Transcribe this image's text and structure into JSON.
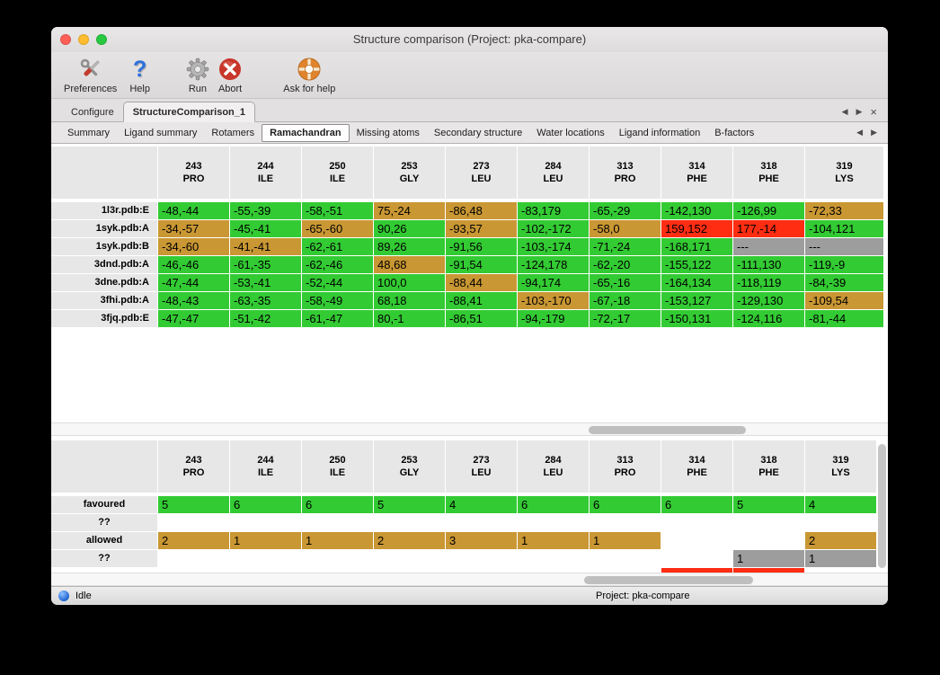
{
  "window": {
    "title": "Structure comparison (Project: pka-compare)",
    "traffic_lights": [
      {
        "name": "close",
        "color": "#ff5f57"
      },
      {
        "name": "minimize",
        "color": "#febc2e"
      },
      {
        "name": "zoom",
        "color": "#28c840"
      }
    ]
  },
  "toolbar": {
    "items": [
      {
        "label": "Preferences",
        "icon": "preferences-tools-icon"
      },
      {
        "label": "Help",
        "icon": "help-question-icon"
      },
      {
        "label": "Run",
        "icon": "run-gear-icon"
      },
      {
        "label": "Abort",
        "icon": "abort-icon"
      },
      {
        "label": "Ask for help",
        "icon": "lifebuoy-icon"
      }
    ]
  },
  "tabstrip": {
    "tabs": [
      {
        "label": "Configure",
        "selected": false
      },
      {
        "label": "StructureComparison_1",
        "selected": true
      }
    ],
    "controls": {
      "prev": "◀",
      "next": "▶",
      "close": "×"
    }
  },
  "subtabstrip": {
    "selected": "Ramachandran",
    "tabs": [
      "Summary",
      "Ligand summary",
      "Rotamers",
      "Ramachandran",
      "Missing atoms",
      "Secondary structure",
      "Water locations",
      "Ligand information",
      "B-factors"
    ],
    "controls": {
      "prev": "◀",
      "next": "▶"
    }
  },
  "status_colors": {
    "favoured": "#33cb33",
    "allowed": "#c99733",
    "outlier": "#ff2d12",
    "missing": "#9d9d9d",
    "none": ""
  },
  "columns": [
    {
      "residue_number": "243",
      "residue_name": "PRO"
    },
    {
      "residue_number": "244",
      "residue_name": "ILE"
    },
    {
      "residue_number": "250",
      "residue_name": "ILE"
    },
    {
      "residue_number": "253",
      "residue_name": "GLY"
    },
    {
      "residue_number": "273",
      "residue_name": "LEU"
    },
    {
      "residue_number": "284",
      "residue_name": "LEU"
    },
    {
      "residue_number": "313",
      "residue_name": "PRO"
    },
    {
      "residue_number": "314",
      "residue_name": "PHE"
    },
    {
      "residue_number": "318",
      "residue_name": "PHE"
    },
    {
      "residue_number": "319",
      "residue_name": "LYS"
    }
  ],
  "structure_table": {
    "rows": [
      {
        "label": "1l3r.pdb:E",
        "cells": [
          {
            "text": "-48,-44",
            "status": "favoured"
          },
          {
            "text": "-55,-39",
            "status": "favoured"
          },
          {
            "text": "-58,-51",
            "status": "favoured"
          },
          {
            "text": "75,-24",
            "status": "allowed"
          },
          {
            "text": "-86,48",
            "status": "allowed"
          },
          {
            "text": "-83,179",
            "status": "favoured"
          },
          {
            "text": "-65,-29",
            "status": "favoured"
          },
          {
            "text": "-142,130",
            "status": "favoured"
          },
          {
            "text": "-126,99",
            "status": "favoured"
          },
          {
            "text": "-72,33",
            "status": "allowed"
          }
        ]
      },
      {
        "label": "1syk.pdb:A",
        "cells": [
          {
            "text": "-34,-57",
            "status": "allowed"
          },
          {
            "text": "-45,-41",
            "status": "favoured"
          },
          {
            "text": "-65,-60",
            "status": "allowed"
          },
          {
            "text": "90,26",
            "status": "favoured"
          },
          {
            "text": "-93,57",
            "status": "allowed"
          },
          {
            "text": "-102,-172",
            "status": "favoured"
          },
          {
            "text": "-58,0",
            "status": "allowed"
          },
          {
            "text": "159,152",
            "status": "outlier"
          },
          {
            "text": "177,-14",
            "status": "outlier"
          },
          {
            "text": "-104,121",
            "status": "favoured"
          }
        ]
      },
      {
        "label": "1syk.pdb:B",
        "cells": [
          {
            "text": "-34,-60",
            "status": "allowed"
          },
          {
            "text": "-41,-41",
            "status": "allowed"
          },
          {
            "text": "-62,-61",
            "status": "favoured"
          },
          {
            "text": "89,26",
            "status": "favoured"
          },
          {
            "text": "-91,56",
            "status": "favoured"
          },
          {
            "text": "-103,-174",
            "status": "favoured"
          },
          {
            "text": "-71,-24",
            "status": "favoured"
          },
          {
            "text": "-168,171",
            "status": "favoured"
          },
          {
            "text": "---",
            "status": "missing"
          },
          {
            "text": "---",
            "status": "missing"
          }
        ]
      },
      {
        "label": "3dnd.pdb:A",
        "cells": [
          {
            "text": "-46,-46",
            "status": "favoured"
          },
          {
            "text": "-61,-35",
            "status": "favoured"
          },
          {
            "text": "-62,-46",
            "status": "favoured"
          },
          {
            "text": "48,68",
            "status": "allowed"
          },
          {
            "text": "-91,54",
            "status": "favoured"
          },
          {
            "text": "-124,178",
            "status": "favoured"
          },
          {
            "text": "-62,-20",
            "status": "favoured"
          },
          {
            "text": "-155,122",
            "status": "favoured"
          },
          {
            "text": "-111,130",
            "status": "favoured"
          },
          {
            "text": "-119,-9",
            "status": "favoured"
          }
        ]
      },
      {
        "label": "3dne.pdb:A",
        "cells": [
          {
            "text": "-47,-44",
            "status": "favoured"
          },
          {
            "text": "-53,-41",
            "status": "favoured"
          },
          {
            "text": "-52,-44",
            "status": "favoured"
          },
          {
            "text": "100,0",
            "status": "favoured"
          },
          {
            "text": "-88,44",
            "status": "allowed"
          },
          {
            "text": "-94,174",
            "status": "favoured"
          },
          {
            "text": "-65,-16",
            "status": "favoured"
          },
          {
            "text": "-164,134",
            "status": "favoured"
          },
          {
            "text": "-118,119",
            "status": "favoured"
          },
          {
            "text": "-84,-39",
            "status": "favoured"
          }
        ]
      },
      {
        "label": "3fhi.pdb:A",
        "cells": [
          {
            "text": "-48,-43",
            "status": "favoured"
          },
          {
            "text": "-63,-35",
            "status": "favoured"
          },
          {
            "text": "-58,-49",
            "status": "favoured"
          },
          {
            "text": "68,18",
            "status": "favoured"
          },
          {
            "text": "-88,41",
            "status": "favoured"
          },
          {
            "text": "-103,-170",
            "status": "allowed"
          },
          {
            "text": "-67,-18",
            "status": "favoured"
          },
          {
            "text": "-153,127",
            "status": "favoured"
          },
          {
            "text": "-129,130",
            "status": "favoured"
          },
          {
            "text": "-109,54",
            "status": "allowed"
          }
        ]
      },
      {
        "label": "3fjq.pdb:E",
        "cells": [
          {
            "text": "-47,-47",
            "status": "favoured"
          },
          {
            "text": "-51,-42",
            "status": "favoured"
          },
          {
            "text": "-61,-47",
            "status": "favoured"
          },
          {
            "text": "80,-1",
            "status": "favoured"
          },
          {
            "text": "-86,51",
            "status": "favoured"
          },
          {
            "text": "-94,-179",
            "status": "favoured"
          },
          {
            "text": "-72,-17",
            "status": "favoured"
          },
          {
            "text": "-150,131",
            "status": "favoured"
          },
          {
            "text": "-124,116",
            "status": "favoured"
          },
          {
            "text": "-81,-44",
            "status": "favoured"
          }
        ]
      }
    ]
  },
  "summary_table": {
    "rows": [
      {
        "label": "favoured",
        "cells": [
          {
            "text": "5",
            "status": "favoured"
          },
          {
            "text": "6",
            "status": "favoured"
          },
          {
            "text": "6",
            "status": "favoured"
          },
          {
            "text": "5",
            "status": "favoured"
          },
          {
            "text": "4",
            "status": "favoured"
          },
          {
            "text": "6",
            "status": "favoured"
          },
          {
            "text": "6",
            "status": "favoured"
          },
          {
            "text": "6",
            "status": "favoured"
          },
          {
            "text": "5",
            "status": "favoured"
          },
          {
            "text": "4",
            "status": "favoured"
          }
        ]
      },
      {
        "label": "??",
        "cells": [
          {
            "text": "",
            "status": "none"
          },
          {
            "text": "",
            "status": "none"
          },
          {
            "text": "",
            "status": "none"
          },
          {
            "text": "",
            "status": "none"
          },
          {
            "text": "",
            "status": "none"
          },
          {
            "text": "",
            "status": "none"
          },
          {
            "text": "",
            "status": "none"
          },
          {
            "text": "",
            "status": "none"
          },
          {
            "text": "",
            "status": "none"
          },
          {
            "text": "",
            "status": "none"
          }
        ]
      },
      {
        "label": "allowed",
        "cells": [
          {
            "text": "2",
            "status": "allowed"
          },
          {
            "text": "1",
            "status": "allowed"
          },
          {
            "text": "1",
            "status": "allowed"
          },
          {
            "text": "2",
            "status": "allowed"
          },
          {
            "text": "3",
            "status": "allowed"
          },
          {
            "text": "1",
            "status": "allowed"
          },
          {
            "text": "1",
            "status": "allowed"
          },
          {
            "text": "",
            "status": "none"
          },
          {
            "text": "",
            "status": "none"
          },
          {
            "text": "2",
            "status": "allowed"
          }
        ]
      },
      {
        "label": "??",
        "cells": [
          {
            "text": "",
            "status": "none"
          },
          {
            "text": "",
            "status": "none"
          },
          {
            "text": "",
            "status": "none"
          },
          {
            "text": "",
            "status": "none"
          },
          {
            "text": "",
            "status": "none"
          },
          {
            "text": "",
            "status": "none"
          },
          {
            "text": "",
            "status": "none"
          },
          {
            "text": "",
            "status": "none"
          },
          {
            "text": "1",
            "status": "missing"
          },
          {
            "text": "1",
            "status": "missing"
          }
        ]
      }
    ],
    "partial_row": {
      "cells": [
        {
          "text": "",
          "status": "none"
        },
        {
          "text": "",
          "status": "none"
        },
        {
          "text": "",
          "status": "none"
        },
        {
          "text": "",
          "status": "none"
        },
        {
          "text": "",
          "status": "none"
        },
        {
          "text": "",
          "status": "none"
        },
        {
          "text": "",
          "status": "none"
        },
        {
          "text": "",
          "status": "outlier"
        },
        {
          "text": "",
          "status": "outlier"
        },
        {
          "text": "",
          "status": "none"
        }
      ]
    }
  },
  "statusbar": {
    "state": "Idle",
    "project": "Project: pka-compare"
  }
}
